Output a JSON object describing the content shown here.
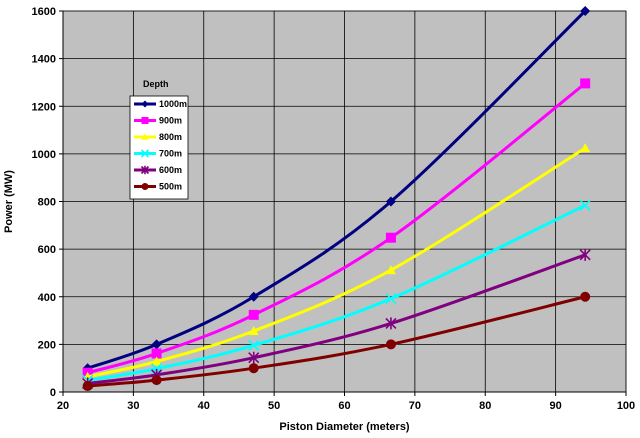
{
  "chart_data": {
    "type": "line",
    "xlabel": "Piston Diameter (meters)",
    "ylabel": "Power (MW)",
    "xlim": [
      20,
      100
    ],
    "ylim": [
      0,
      1600
    ],
    "x_ticks": [
      20,
      30,
      40,
      50,
      60,
      70,
      80,
      90,
      100
    ],
    "y_ticks": [
      0,
      200,
      400,
      600,
      800,
      1000,
      1200,
      1400,
      1600
    ],
    "grid": true,
    "legend_title": "Depth",
    "legend_position": "top-left",
    "x": [
      23.5,
      33.3,
      47.1,
      66.6,
      94.2
    ],
    "series": [
      {
        "name": "1000m",
        "color": "#000080",
        "marker": "diamond",
        "values": [
          100,
          200,
          400,
          800,
          1600
        ]
      },
      {
        "name": "900m",
        "color": "#FF00FF",
        "marker": "square",
        "values": [
          81,
          162,
          324,
          648,
          1296
        ]
      },
      {
        "name": "800m",
        "color": "#FFFF00",
        "marker": "triangle",
        "values": [
          64,
          128,
          256,
          512,
          1024
        ]
      },
      {
        "name": "700m",
        "color": "#00FFFF",
        "marker": "x",
        "values": [
          49,
          98,
          196,
          392,
          784
        ]
      },
      {
        "name": "600m",
        "color": "#800080",
        "marker": "star",
        "values": [
          36,
          72,
          144,
          288,
          576
        ]
      },
      {
        "name": "500m",
        "color": "#800000",
        "marker": "circle",
        "values": [
          25,
          50,
          100,
          200,
          400
        ]
      }
    ]
  }
}
